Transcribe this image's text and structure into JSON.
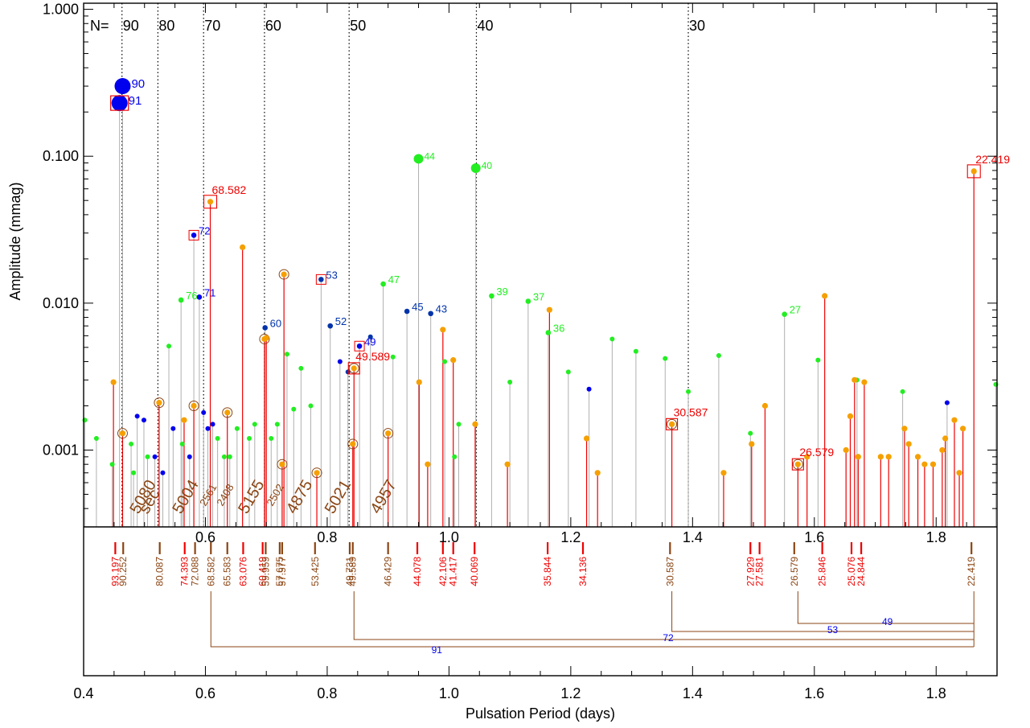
{
  "chart_data": {
    "type": "scatter",
    "xlabel": "Pulsation Period (days)",
    "ylabel": "Amplitude (mmag)",
    "xlim": [
      0.4,
      1.9
    ],
    "ylim": [
      0.0003,
      1.1
    ],
    "y_scale": "log",
    "x_ticks": [
      "0.4",
      "0.6",
      "0.8",
      "1.0",
      "1.2",
      "1.4",
      "1.6",
      "1.8"
    ],
    "x_ticks_inner": [
      "0.6",
      "0.8",
      "1.0",
      "1.2",
      "1.4",
      "1.6",
      "1.8"
    ],
    "y_ticks": [
      {
        "v": 1.0,
        "label": "1.000"
      },
      {
        "v": 0.1,
        "label": "0.100"
      },
      {
        "v": 0.01,
        "label": "0.010"
      },
      {
        "v": 0.001,
        "label": "0.001"
      }
    ],
    "n_prefix": "N=",
    "n_lines": [
      {
        "x": 0.463,
        "label": "90"
      },
      {
        "x": 0.522,
        "label": "80"
      },
      {
        "x": 0.597,
        "label": "70"
      },
      {
        "x": 0.697,
        "label": "60"
      },
      {
        "x": 0.836,
        "label": "50"
      },
      {
        "x": 1.045,
        "label": "40"
      },
      {
        "x": 1.393,
        "label": "30"
      }
    ],
    "colors": {
      "blue": "#0000ee",
      "navy": "#0033aa",
      "green": "#22ee22",
      "orange": "#f5a000",
      "red": "#ee0000",
      "brown": "#8b4513",
      "gray": "#b0b0b0"
    },
    "big_points": [
      {
        "x": 0.464,
        "y": 0.3,
        "label": "90",
        "color": "#0000ee"
      },
      {
        "x": 0.459,
        "y": 0.23,
        "label": "91",
        "color": "#0000ee",
        "boxed": true
      },
      {
        "x": 0.95,
        "y": 0.096,
        "label": "44",
        "color": "#22ee22"
      },
      {
        "x": 1.044,
        "y": 0.083,
        "label": "40",
        "color": "#22ee22"
      }
    ],
    "labeled_points": [
      {
        "x": 0.581,
        "y": 0.029,
        "label": "72",
        "color": "#0000ee",
        "boxed": true
      },
      {
        "x": 0.59,
        "y": 0.011,
        "label": "71",
        "color": "#0000ee"
      },
      {
        "x": 0.56,
        "y": 0.0105,
        "label": "76",
        "color": "#22ee22"
      },
      {
        "x": 0.698,
        "y": 0.0068,
        "label": "60",
        "color": "#0033aa"
      },
      {
        "x": 0.79,
        "y": 0.0145,
        "label": "53",
        "color": "#0033aa",
        "boxed": true
      },
      {
        "x": 0.805,
        "y": 0.007,
        "label": "52",
        "color": "#0033aa"
      },
      {
        "x": 0.853,
        "y": 0.0051,
        "label": "49",
        "color": "#0000ee",
        "boxed": true
      },
      {
        "x": 0.892,
        "y": 0.0135,
        "label": "47",
        "color": "#22ee22"
      },
      {
        "x": 0.931,
        "y": 0.0088,
        "label": "45",
        "color": "#0033aa"
      },
      {
        "x": 0.97,
        "y": 0.0085,
        "label": "43",
        "color": "#0033aa"
      },
      {
        "x": 1.07,
        "y": 0.0112,
        "label": "39",
        "color": "#22ee22"
      },
      {
        "x": 1.13,
        "y": 0.0103,
        "label": "37",
        "color": "#22ee22"
      },
      {
        "x": 1.163,
        "y": 0.0063,
        "label": "36",
        "color": "#22ee22"
      },
      {
        "x": 1.551,
        "y": 0.0084,
        "label": "27",
        "color": "#22ee22"
      }
    ],
    "gray_stem_points": [
      {
        "x": 0.402,
        "y": 0.0016,
        "c": "#22ee22"
      },
      {
        "x": 0.421,
        "y": 0.0012,
        "c": "#22ee22"
      },
      {
        "x": 0.447,
        "y": 0.0008,
        "c": "#22ee22"
      },
      {
        "x": 0.478,
        "y": 0.0011,
        "c": "#22ee22"
      },
      {
        "x": 0.482,
        "y": 0.0007,
        "c": "#22ee22"
      },
      {
        "x": 0.488,
        "y": 0.0017,
        "c": "#0000ee"
      },
      {
        "x": 0.499,
        "y": 0.0016,
        "c": "#0000ee"
      },
      {
        "x": 0.505,
        "y": 0.0009,
        "c": "#22ee22"
      },
      {
        "x": 0.517,
        "y": 0.0009,
        "c": "#0000ee"
      },
      {
        "x": 0.53,
        "y": 0.0007,
        "c": "#0000ee"
      },
      {
        "x": 0.54,
        "y": 0.0051,
        "c": "#22ee22"
      },
      {
        "x": 0.547,
        "y": 0.0014,
        "c": "#0000ee"
      },
      {
        "x": 0.562,
        "y": 0.0011,
        "c": "#22ee22"
      },
      {
        "x": 0.574,
        "y": 0.0009,
        "c": "#0000ee"
      },
      {
        "x": 0.597,
        "y": 0.0018,
        "c": "#0000ee"
      },
      {
        "x": 0.604,
        "y": 0.0014,
        "c": "#0000ee"
      },
      {
        "x": 0.612,
        "y": 0.0015,
        "c": "#0000ee"
      },
      {
        "x": 0.62,
        "y": 0.0012,
        "c": "#22ee22"
      },
      {
        "x": 0.631,
        "y": 0.0009,
        "c": "#22ee22"
      },
      {
        "x": 0.64,
        "y": 0.0009,
        "c": "#22ee22"
      },
      {
        "x": 0.652,
        "y": 0.0014,
        "c": "#22ee22"
      },
      {
        "x": 0.672,
        "y": 0.0012,
        "c": "#22ee22"
      },
      {
        "x": 0.681,
        "y": 0.0015,
        "c": "#22ee22"
      },
      {
        "x": 0.708,
        "y": 0.0012,
        "c": "#22ee22"
      },
      {
        "x": 0.718,
        "y": 0.0015,
        "c": "#22ee22"
      },
      {
        "x": 0.734,
        "y": 0.0045,
        "c": "#22ee22"
      },
      {
        "x": 0.745,
        "y": 0.0019,
        "c": "#22ee22"
      },
      {
        "x": 0.757,
        "y": 0.0036,
        "c": "#22ee22"
      },
      {
        "x": 0.773,
        "y": 0.002,
        "c": "#22ee22"
      },
      {
        "x": 0.821,
        "y": 0.004,
        "c": "#0000ee"
      },
      {
        "x": 0.834,
        "y": 0.0034,
        "c": "#0033aa"
      },
      {
        "x": 0.871,
        "y": 0.0059,
        "c": "#0033aa"
      },
      {
        "x": 0.908,
        "y": 0.0043,
        "c": "#22ee22"
      },
      {
        "x": 0.993,
        "y": 0.004,
        "c": "#22ee22"
      },
      {
        "x": 1.009,
        "y": 0.0009,
        "c": "#22ee22"
      },
      {
        "x": 1.016,
        "y": 0.0015,
        "c": "#22ee22"
      },
      {
        "x": 1.1,
        "y": 0.0029,
        "c": "#22ee22"
      },
      {
        "x": 1.196,
        "y": 0.0034,
        "c": "#22ee22"
      },
      {
        "x": 1.23,
        "y": 0.0026,
        "c": "#0000ee"
      },
      {
        "x": 1.268,
        "y": 0.0057,
        "c": "#22ee22"
      },
      {
        "x": 1.307,
        "y": 0.0047,
        "c": "#22ee22"
      },
      {
        "x": 1.355,
        "y": 0.0042,
        "c": "#22ee22"
      },
      {
        "x": 1.393,
        "y": 0.0025,
        "c": "#22ee22"
      },
      {
        "x": 1.443,
        "y": 0.0044,
        "c": "#22ee22"
      },
      {
        "x": 1.495,
        "y": 0.0013,
        "c": "#22ee22"
      },
      {
        "x": 1.606,
        "y": 0.0041,
        "c": "#22ee22"
      },
      {
        "x": 1.67,
        "y": 0.003,
        "c": "#22ee22"
      },
      {
        "x": 1.745,
        "y": 0.0025,
        "c": "#22ee22"
      },
      {
        "x": 1.818,
        "y": 0.0021,
        "c": "#0000ee"
      },
      {
        "x": 1.898,
        "y": 0.0028,
        "c": "#22ee22"
      }
    ],
    "orange_points": [
      {
        "x": 0.449,
        "y": 0.0029
      },
      {
        "x": 0.464,
        "y": 0.0013,
        "circled": true
      },
      {
        "x": 0.524,
        "y": 0.0021,
        "circled": true
      },
      {
        "x": 0.565,
        "y": 0.0016
      },
      {
        "x": 0.581,
        "y": 0.002,
        "circled": true
      },
      {
        "x": 0.608,
        "y": 0.049,
        "boxed": true,
        "label": "68.582"
      },
      {
        "x": 0.636,
        "y": 0.0018,
        "circled": true
      },
      {
        "x": 0.661,
        "y": 0.024
      },
      {
        "x": 0.697,
        "y": 0.0057,
        "circled": true
      },
      {
        "x": 0.7,
        "y": 0.0058
      },
      {
        "x": 0.726,
        "y": 0.0008,
        "circled": true
      },
      {
        "x": 0.729,
        "y": 0.0157,
        "circled": true
      },
      {
        "x": 0.783,
        "y": 0.0007,
        "circled": true
      },
      {
        "x": 0.842,
        "y": 0.0011,
        "circled": true
      },
      {
        "x": 0.844,
        "y": 0.0036,
        "boxed": true,
        "circled": true,
        "label": "49.589"
      },
      {
        "x": 0.9,
        "y": 0.0013,
        "circled": true
      },
      {
        "x": 0.951,
        "y": 0.0029
      },
      {
        "x": 0.965,
        "y": 0.0008
      },
      {
        "x": 0.99,
        "y": 0.0066
      },
      {
        "x": 1.007,
        "y": 0.0041
      },
      {
        "x": 1.043,
        "y": 0.0015
      },
      {
        "x": 1.096,
        "y": 0.0008
      },
      {
        "x": 1.165,
        "y": 0.009
      },
      {
        "x": 1.226,
        "y": 0.0012
      },
      {
        "x": 1.244,
        "y": 0.0007
      },
      {
        "x": 1.366,
        "y": 0.0015,
        "boxed": true,
        "circled": true,
        "label": "30.587"
      },
      {
        "x": 1.451,
        "y": 0.0007
      },
      {
        "x": 1.497,
        "y": 0.0011
      },
      {
        "x": 1.519,
        "y": 0.002
      },
      {
        "x": 1.573,
        "y": 0.0008,
        "boxed": true,
        "circled": true,
        "label": "26.579"
      },
      {
        "x": 1.588,
        "y": 0.0009
      },
      {
        "x": 1.617,
        "y": 0.0112
      },
      {
        "x": 1.652,
        "y": 0.001
      },
      {
        "x": 1.659,
        "y": 0.0017
      },
      {
        "x": 1.666,
        "y": 0.003
      },
      {
        "x": 1.672,
        "y": 0.0009
      },
      {
        "x": 1.682,
        "y": 0.0029
      },
      {
        "x": 1.709,
        "y": 0.0009
      },
      {
        "x": 1.722,
        "y": 0.0009
      },
      {
        "x": 1.748,
        "y": 0.0014
      },
      {
        "x": 1.755,
        "y": 0.0011
      },
      {
        "x": 1.77,
        "y": 0.0009
      },
      {
        "x": 1.781,
        "y": 0.0008
      },
      {
        "x": 1.795,
        "y": 0.0008
      },
      {
        "x": 1.81,
        "y": 0.001
      },
      {
        "x": 1.815,
        "y": 0.0012
      },
      {
        "x": 1.83,
        "y": 0.0016
      },
      {
        "x": 1.838,
        "y": 0.0007
      },
      {
        "x": 1.844,
        "y": 0.0014
      },
      {
        "x": 1.862,
        "y": 0.079,
        "boxed": true,
        "label": "22.419"
      }
    ],
    "rotated_labels": [
      {
        "x": 0.49,
        "text": "5080",
        "size": 20
      },
      {
        "x": 0.505,
        "text": "sec",
        "size": 20
      },
      {
        "x": 0.56,
        "text": "5004",
        "size": 20
      },
      {
        "x": 0.6,
        "text": "2561",
        "size": 13
      },
      {
        "x": 0.628,
        "text": "2408",
        "size": 13
      },
      {
        "x": 0.668,
        "text": "5155",
        "size": 20
      },
      {
        "x": 0.71,
        "text": "2502",
        "size": 13
      },
      {
        "x": 0.747,
        "text": "4875",
        "size": 20
      },
      {
        "x": 0.81,
        "text": "5021",
        "size": 20
      },
      {
        "x": 0.885,
        "text": "4957",
        "size": 20
      }
    ],
    "period_labels": [
      {
        "x": 0.452,
        "text": "93.197",
        "c": "#ee0000"
      },
      {
        "x": 0.465,
        "text": "90.252",
        "c": "#8b4513"
      },
      {
        "x": 0.525,
        "text": "80.087",
        "c": "#8b4513"
      },
      {
        "x": 0.566,
        "text": "74.393",
        "c": "#ee0000"
      },
      {
        "x": 0.583,
        "text": "72.088",
        "c": "#8b4513"
      },
      {
        "x": 0.609,
        "text": "68.582",
        "c": "#8b4513"
      },
      {
        "x": 0.636,
        "text": "65.583",
        "c": "#8b4513"
      },
      {
        "x": 0.662,
        "text": "63.076",
        "c": "#ee0000"
      },
      {
        "x": 0.694,
        "text": "60.419",
        "c": "#ee0000"
      },
      {
        "x": 0.699,
        "text": "59.959",
        "c": "#8b4513"
      },
      {
        "x": 0.722,
        "text": "57.675",
        "c": "#8b4513"
      },
      {
        "x": 0.726,
        "text": "57.577",
        "c": "#8b4513"
      },
      {
        "x": 0.78,
        "text": "53.425",
        "c": "#8b4513"
      },
      {
        "x": 0.837,
        "text": "49.731",
        "c": "#8b4513"
      },
      {
        "x": 0.842,
        "text": "49.589",
        "c": "#8b4513"
      },
      {
        "x": 0.9,
        "text": "46.429",
        "c": "#8b4513"
      },
      {
        "x": 0.948,
        "text": "44.078",
        "c": "#ee0000"
      },
      {
        "x": 0.99,
        "text": "42.106",
        "c": "#ee0000"
      },
      {
        "x": 1.007,
        "text": "41.417",
        "c": "#ee0000"
      },
      {
        "x": 1.042,
        "text": "40.069",
        "c": "#ee0000"
      },
      {
        "x": 1.162,
        "text": "35.844",
        "c": "#ee0000"
      },
      {
        "x": 1.22,
        "text": "34.136",
        "c": "#ee0000"
      },
      {
        "x": 1.363,
        "text": "30.587",
        "c": "#8b4513"
      },
      {
        "x": 1.495,
        "text": "27.929",
        "c": "#ee0000"
      },
      {
        "x": 1.51,
        "text": "27.581",
        "c": "#ee0000"
      },
      {
        "x": 1.567,
        "text": "26.579",
        "c": "#8b4513"
      },
      {
        "x": 1.613,
        "text": "25.846",
        "c": "#ee0000"
      },
      {
        "x": 1.661,
        "text": "25.076",
        "c": "#ee0000"
      },
      {
        "x": 1.677,
        "text": "24.844",
        "c": "#ee0000"
      },
      {
        "x": 1.858,
        "text": "22.419",
        "c": "#8b4513"
      }
    ],
    "connectors": [
      {
        "from": 1.573,
        "to": 1.862,
        "level": 1,
        "label": "49",
        "label_x": 1.72
      },
      {
        "from": 1.366,
        "to": 1.862,
        "level": 2,
        "label": "53",
        "label_x": 1.63
      },
      {
        "from": 0.844,
        "to": 1.862,
        "level": 3,
        "label": "72",
        "label_x": 1.36
      },
      {
        "from": 0.609,
        "to": 1.862,
        "level": 4,
        "label": "91",
        "label_x": 0.98
      }
    ]
  }
}
